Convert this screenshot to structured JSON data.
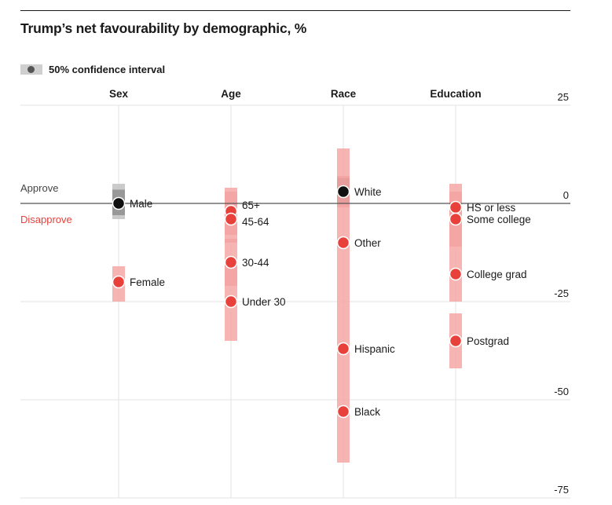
{
  "title": "Trump’s net favourability by demographic, %",
  "legend": {
    "label": "50% confidence interval"
  },
  "labels": {
    "approve": "Approve",
    "disapprove": "Disapprove"
  },
  "colors": {
    "dot": "#e8413c",
    "band": "#f4a3a0",
    "bandCore": "#ec7370",
    "maleBand": "#bdbdbd",
    "maleCore": "#8f8f8f",
    "whiteBand": "#f4a3a0",
    "whiteCore": "#a0807f",
    "approve": "#444444",
    "disapprove": "#e8413c",
    "black": "#111111"
  },
  "chart_data": {
    "type": "dot-interval",
    "title": "Trump’s net favourability by demographic, %",
    "ylim": [
      -75,
      25
    ],
    "yticks": [
      "25",
      "0",
      "-25",
      "-50",
      "-75"
    ],
    "categories": [
      "Sex",
      "Age",
      "Race",
      "Education"
    ],
    "groups": [
      {
        "name": "Sex",
        "points": [
          {
            "label": "Male",
            "value": 0,
            "ci": [
              -4,
              5
            ],
            "colour": "black"
          },
          {
            "label": "Female",
            "value": -20,
            "ci": [
              -25,
              -16
            ],
            "colour": "red"
          }
        ]
      },
      {
        "name": "Age",
        "points": [
          {
            "label": "65+",
            "value": -2,
            "ci": [
              -8,
              4
            ],
            "colour": "red"
          },
          {
            "label": "45-64",
            "value": -4,
            "ci": [
              -10,
              3
            ],
            "colour": "red"
          },
          {
            "label": "30-44",
            "value": -15,
            "ci": [
              -21,
              -9
            ],
            "colour": "red"
          },
          {
            "label": "Under 30",
            "value": -25,
            "ci": [
              -35,
              -15
            ],
            "colour": "red"
          }
        ]
      },
      {
        "name": "Race",
        "points": [
          {
            "label": "White",
            "value": 3,
            "ci": [
              -1,
              7
            ],
            "colour": "black"
          },
          {
            "label": "Other",
            "value": -10,
            "ci": [
              -20,
              14
            ],
            "colour": "red"
          },
          {
            "label": "Hispanic",
            "value": -37,
            "ci": [
              -40,
              -20
            ],
            "colour": "red"
          },
          {
            "label": "Black",
            "value": -53,
            "ci": [
              -66,
              -40
            ],
            "colour": "red"
          }
        ]
      },
      {
        "name": "Education",
        "points": [
          {
            "label": "HS or less",
            "value": -1,
            "ci": [
              -11,
              5
            ],
            "colour": "red"
          },
          {
            "label": "Some college",
            "value": -4,
            "ci": [
              -11,
              3
            ],
            "colour": "red"
          },
          {
            "label": "College grad",
            "value": -18,
            "ci": [
              -25,
              -11
            ],
            "colour": "red"
          },
          {
            "label": "Postgrad",
            "value": -35,
            "ci": [
              -42,
              -28
            ],
            "colour": "red"
          }
        ]
      }
    ]
  }
}
